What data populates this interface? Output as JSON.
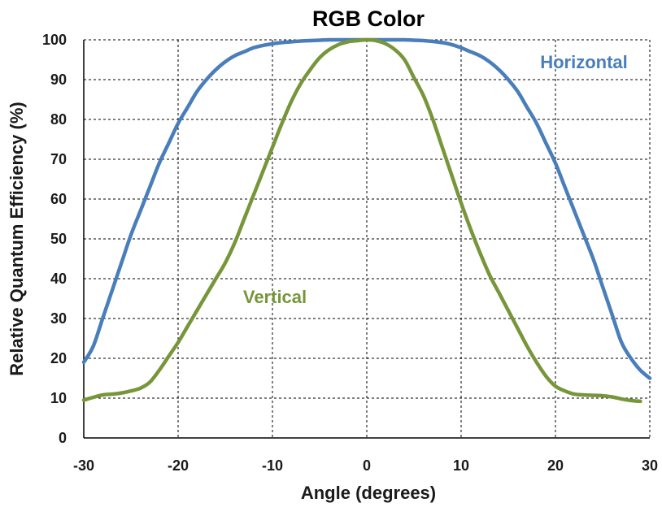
{
  "chart_data": {
    "type": "line",
    "title": "RGB Color",
    "xlabel": "Angle (degrees)",
    "ylabel": "Relative Quantum Efficiency (%)",
    "xlim": [
      -30,
      30
    ],
    "ylim": [
      0,
      100
    ],
    "xticks": [
      -30,
      -20,
      -10,
      0,
      10,
      20,
      30
    ],
    "yticks": [
      0,
      10,
      20,
      30,
      40,
      50,
      60,
      70,
      80,
      90,
      100
    ],
    "grid": true,
    "series": [
      {
        "name": "Horizontal",
        "color": "#4a7ebb",
        "x": [
          -30,
          -29,
          -28,
          -27,
          -26,
          -25,
          -24,
          -23,
          -22,
          -21,
          -20,
          -19,
          -18,
          -17,
          -16,
          -15,
          -14,
          -13,
          -12,
          -11,
          -10,
          -9,
          -8,
          -7,
          -6,
          -5,
          -4,
          -3,
          -2,
          -1,
          0,
          1,
          2,
          3,
          4,
          5,
          6,
          7,
          8,
          9,
          10,
          11,
          12,
          13,
          14,
          15,
          16,
          17,
          18,
          19,
          20,
          21,
          22,
          23,
          24,
          25,
          26,
          27,
          28,
          29,
          30
        ],
        "y": [
          19,
          23,
          30,
          37,
          44,
          51,
          57,
          63,
          69,
          74,
          79,
          83,
          87,
          90,
          92.5,
          94.5,
          96,
          97,
          98,
          98.6,
          99,
          99.3,
          99.5,
          99.7,
          99.8,
          99.9,
          100,
          100,
          100,
          100,
          100,
          100,
          100,
          100,
          100,
          99.9,
          99.8,
          99.6,
          99.3,
          98.8,
          98,
          97,
          96,
          94.5,
          92.5,
          90,
          87,
          83,
          79,
          74,
          69,
          63,
          57,
          51,
          45,
          38,
          31,
          24,
          20,
          17,
          15
        ]
      },
      {
        "name": "Vertical",
        "color": "#77963a",
        "x": [
          -30,
          -29,
          -28,
          -27,
          -26,
          -25,
          -24,
          -23,
          -22,
          -21,
          -20,
          -19,
          -18,
          -17,
          -16,
          -15,
          -14,
          -13,
          -12,
          -11,
          -10,
          -9,
          -8,
          -7,
          -6,
          -5,
          -4,
          -3,
          -2,
          -1,
          0,
          1,
          2,
          3,
          4,
          5,
          6,
          7,
          8,
          9,
          10,
          11,
          12,
          13,
          14,
          15,
          16,
          17,
          18,
          19,
          20,
          21,
          22,
          23,
          24,
          25,
          26,
          27,
          28,
          29
        ],
        "y": [
          9.5,
          10.2,
          10.8,
          11,
          11.3,
          11.8,
          12.5,
          14,
          17,
          20.5,
          24,
          28,
          32,
          36,
          40,
          44,
          49,
          55,
          61,
          67,
          73,
          79,
          84.5,
          89,
          92.5,
          95.5,
          97.5,
          98.8,
          99.5,
          99.8,
          100,
          99.8,
          99,
          97.5,
          95,
          90.5,
          86,
          80,
          73,
          66,
          59,
          52.5,
          46.5,
          41,
          36.5,
          32,
          27.5,
          23,
          19,
          15.5,
          13,
          11.8,
          11,
          10.8,
          10.7,
          10.6,
          10.3,
          9.8,
          9.4,
          9.2
        ]
      }
    ]
  }
}
